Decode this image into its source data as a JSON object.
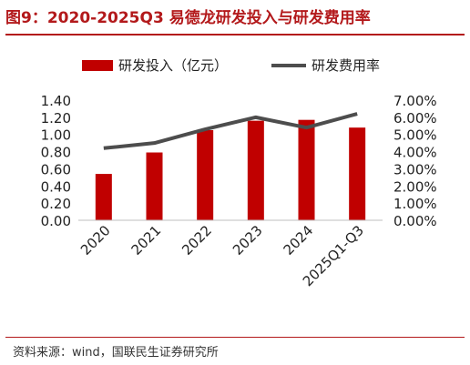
{
  "figure": {
    "title": "图9：2020-2025Q3 易德龙研发投入与研发费用率",
    "source": "资料来源：wind，国联民生证券研究所"
  },
  "colors": {
    "bar": "#c00000",
    "line": "#4d4d4d",
    "title": "#b3191b"
  },
  "chart_data": {
    "type": "bar",
    "categories": [
      "2020",
      "2021",
      "2022",
      "2023",
      "2024",
      "2025Q1-Q3"
    ],
    "series": [
      {
        "name": "研发投入（亿元）",
        "type": "bar",
        "axis": "left",
        "values": [
          0.54,
          0.79,
          1.05,
          1.16,
          1.17,
          1.08
        ]
      },
      {
        "name": "研发费用率",
        "type": "line",
        "axis": "right",
        "values": [
          4.2,
          4.5,
          5.3,
          6.0,
          5.4,
          6.2
        ]
      }
    ],
    "y_left": {
      "ylim": [
        0,
        1.4
      ],
      "ticks": [
        "0.00",
        "0.20",
        "0.40",
        "0.60",
        "0.80",
        "1.00",
        "1.20",
        "1.40"
      ]
    },
    "y_right": {
      "ylim": [
        0,
        7
      ],
      "unit": "%",
      "ticks": [
        "0.00%",
        "1.00%",
        "2.00%",
        "3.00%",
        "4.00%",
        "5.00%",
        "6.00%",
        "7.00%"
      ]
    },
    "legend": "top",
    "grid": false
  }
}
